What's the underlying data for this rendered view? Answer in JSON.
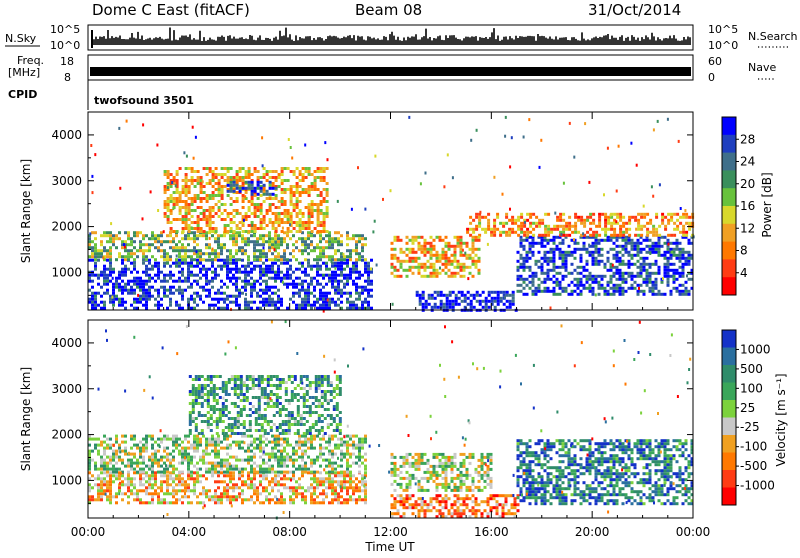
{
  "header": {
    "radar": "Dome C East (fitACF)",
    "beam": "Beam 08",
    "date": "31/Oct/2014"
  },
  "panels": {
    "nsky": {
      "left_label": "N.Sky",
      "left_ticks": [
        "10^5",
        "10^0"
      ],
      "right_label": "N.Search",
      "right_ticks": [
        "10^5",
        "10^0"
      ]
    },
    "freq": {
      "left_label_1": "Freq.",
      "left_label_2": "[MHz]",
      "left_ticks": [
        "18",
        "8"
      ],
      "right_label": "Nave",
      "right_ticks": [
        "60",
        "0"
      ]
    },
    "cpid": {
      "label": "CPID",
      "value": "twofsound 3501"
    }
  },
  "chart_data": [
    {
      "type": "heatmap",
      "title": "",
      "xlabel": "",
      "ylabel": "Slant Range [km]",
      "x_ticks": [
        "00:00",
        "04:00",
        "08:00",
        "12:00",
        "16:00",
        "20:00",
        "00:00"
      ],
      "xlim_hours": [
        0,
        24
      ],
      "ylim_km": [
        180,
        4500
      ],
      "y_ticks": [
        1000,
        2000,
        3000,
        4000
      ],
      "colorbar": {
        "label": "Power [dB]",
        "ticks": [
          "4",
          "8",
          "12",
          "16",
          "20",
          "24",
          "28"
        ],
        "colors": [
          "#0000ff",
          "#1f3fbf",
          "#3f6f8a",
          "#3a8f5c",
          "#68c23c",
          "#d8d82c",
          "#f0a024",
          "#ff7800",
          "#ff3c14",
          "#ff0000"
        ]
      },
      "regions": [
        {
          "t0": 0.0,
          "t1": 11.2,
          "r0": 250,
          "r1": 1300,
          "level": 0.9
        },
        {
          "t0": 0.0,
          "t1": 11.0,
          "r0": 1300,
          "r1": 1900,
          "level": 0.55
        },
        {
          "t0": 3.0,
          "t1": 9.5,
          "r0": 1900,
          "r1": 3300,
          "level": 0.35
        },
        {
          "t0": 5.5,
          "t1": 7.5,
          "r0": 2700,
          "r1": 3000,
          "level": 0.8
        },
        {
          "t0": 13.0,
          "t1": 17.0,
          "r0": 200,
          "r1": 600,
          "level": 0.95
        },
        {
          "t0": 17.0,
          "t1": 24.0,
          "r0": 500,
          "r1": 1800,
          "level": 0.85
        },
        {
          "t0": 15.0,
          "t1": 24.0,
          "r0": 1800,
          "r1": 2300,
          "level": 0.3
        },
        {
          "t0": 12.0,
          "t1": 15.5,
          "r0": 900,
          "r1": 1800,
          "level": 0.35
        }
      ]
    },
    {
      "type": "heatmap",
      "title": "",
      "xlabel": "Time UT",
      "ylabel": "Slant Range [km]",
      "x_ticks": [
        "00:00",
        "04:00",
        "08:00",
        "12:00",
        "16:00",
        "20:00",
        "00:00"
      ],
      "xlim_hours": [
        0,
        24
      ],
      "ylim_km": [
        180,
        4500
      ],
      "y_ticks": [
        1000,
        2000,
        3000,
        4000
      ],
      "colorbar": {
        "label": "Velocity [m s⁻¹]",
        "ticks": [
          "1000",
          "500",
          "100",
          "25",
          "-25",
          "-100",
          "-500",
          "-1000"
        ],
        "colors": [
          "#1432c8",
          "#2a6f9f",
          "#2f8c6a",
          "#3aa65a",
          "#7cd23c",
          "#c8c8c8",
          "#f0a020",
          "#ff7800",
          "#ff3c14",
          "#ff0000"
        ]
      },
      "regions": [
        {
          "t0": 0.0,
          "t1": 11.0,
          "r0": 500,
          "r1": 1200,
          "level": 0.65
        },
        {
          "t0": 0.0,
          "t1": 11.0,
          "r0": 1200,
          "r1": 2000,
          "level": 0.45
        },
        {
          "t0": 4.0,
          "t1": 10.0,
          "r0": 2000,
          "r1": 3300,
          "level": 0.3
        },
        {
          "t0": 12.0,
          "t1": 17.0,
          "r0": 200,
          "r1": 700,
          "level": 0.75
        },
        {
          "t0": 17.0,
          "t1": 24.0,
          "r0": 500,
          "r1": 1900,
          "level": 0.2
        },
        {
          "t0": 12.0,
          "t1": 16.0,
          "r0": 800,
          "r1": 1600,
          "level": 0.5
        }
      ]
    }
  ]
}
